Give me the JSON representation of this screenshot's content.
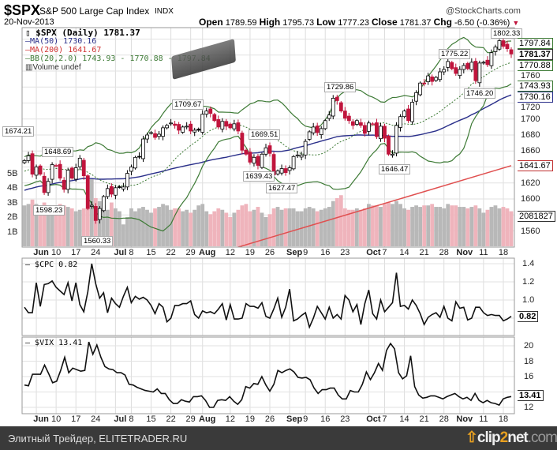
{
  "header": {
    "symbol": "$SPX",
    "name": "S&P 500 Large Cap Index",
    "exchange": "INDX",
    "date": "20-Nov-2013",
    "source": "@StockCharts.com",
    "open_label": "Open",
    "open": "1789.59",
    "high_label": "High",
    "high": "1795.73",
    "low_label": "Low",
    "low": "1777.23",
    "close_label": "Close",
    "close": "1781.37",
    "chg_label": "Chg",
    "chg": "-6.50 (-0.36%)",
    "chg_icon": "triangle-down"
  },
  "legend": {
    "main": "$SPX (Daily) 1781.37",
    "ma50": "MA(50) 1730.16",
    "ma200": "MA(200) 1641.67",
    "bb": "BB(20,2.0) 1743.93 - 1770.88 - 1797.84",
    "volume": "Volume undef"
  },
  "colors": {
    "up": "#000000",
    "down": "#c0143c",
    "ma50": "#2a2f8a",
    "ma200": "#e05050",
    "bb": "#3d7a35",
    "volume_up": "#b8b8b8",
    "volume_down": "#efb4bc"
  },
  "annotations": [
    "1674.21",
    "1648.69",
    "1598.23",
    "1560.33",
    "1709.67",
    "1669.51",
    "1639.43",
    "1627.47",
    "1729.86",
    "1646.47",
    "1775.22",
    "1746.20",
    "1802.33"
  ],
  "right_labels": {
    "bb_upper": "1797.84",
    "close": "1781.37",
    "bb_mid": "1770.88",
    "bb_lower": "1743.93",
    "ma50": "1730.16",
    "ma200": "1641.67",
    "volume": "2081827",
    "cpc": "0.82",
    "vix": "13.41"
  },
  "footer": {
    "text": "Элитный Трейдер, ELITETRADER.RU",
    "logo_a": "clip",
    "logo_b": "2",
    "logo_c": "net",
    "logo_d": ".com"
  },
  "chart_data": [
    {
      "type": "candlestick",
      "title": "$SPX (Daily)",
      "ylim": [
        1550,
        1810
      ],
      "yticks": [
        "1760",
        "1720",
        "1700",
        "1680",
        "1660",
        "1620",
        "1600",
        "1560"
      ],
      "volume_ticks": [
        "5B",
        "4B",
        "3B",
        "2B",
        "1B"
      ],
      "close": [
        1648,
        1654,
        1631,
        1640,
        1631,
        1608,
        1622,
        1643,
        1642,
        1626,
        1612,
        1636,
        1626,
        1639,
        1651,
        1629,
        1588,
        1592,
        1573,
        1588,
        1603,
        1613,
        1606,
        1614,
        1615,
        1615,
        1632,
        1640,
        1652,
        1653,
        1675,
        1680,
        1683,
        1677,
        1681,
        1689,
        1692,
        1695,
        1692,
        1686,
        1690,
        1691,
        1685,
        1686,
        1686,
        1706,
        1710,
        1707,
        1698,
        1690,
        1697,
        1691,
        1689,
        1694,
        1685,
        1661,
        1656,
        1646,
        1652,
        1642,
        1656,
        1664,
        1657,
        1630,
        1635,
        1638,
        1633,
        1639,
        1653,
        1655,
        1655,
        1672,
        1684,
        1690,
        1683,
        1688,
        1698,
        1705,
        1726,
        1723,
        1710,
        1701,
        1698,
        1692,
        1698,
        1692,
        1682,
        1695,
        1694,
        1678,
        1691,
        1676,
        1656,
        1656,
        1692,
        1703,
        1710,
        1698,
        1721,
        1733,
        1745,
        1744,
        1754,
        1747,
        1752,
        1759,
        1762,
        1772,
        1763,
        1757,
        1762,
        1767,
        1763,
        1771,
        1748,
        1770,
        1771,
        1768,
        1783,
        1790,
        1798,
        1791,
        1788,
        1781.37
      ],
      "volume_b": [
        2.8,
        2.9,
        3.2,
        2.9,
        2.8,
        3.0,
        2.7,
        2.6,
        2.5,
        2.9,
        2.8,
        2.7,
        2.6,
        2.4,
        2.5,
        2.6,
        3.3,
        4.6,
        3.3,
        3.1,
        2.8,
        2.5,
        3.0,
        2.6,
        2.4,
        1.5,
        2.0,
        2.6,
        2.4,
        2.6,
        2.7,
        2.5,
        2.3,
        2.6,
        2.7,
        2.9,
        2.8,
        2.5,
        2.6,
        2.6,
        2.4,
        2.5,
        2.3,
        2.5,
        2.8,
        2.9,
        2.4,
        2.2,
        2.4,
        2.6,
        2.5,
        2.3,
        2.0,
        2.3,
        2.5,
        2.8,
        2.9,
        2.4,
        2.5,
        2.7,
        2.3,
        2.0,
        2.2,
        2.6,
        2.7,
        2.5,
        2.6,
        2.6,
        2.6,
        2.4,
        2.4,
        2.6,
        2.7,
        2.6,
        2.4,
        2.5,
        2.6,
        2.7,
        3.1,
        3.3,
        3.5,
        2.6,
        2.5,
        2.5,
        2.6,
        2.5,
        2.6,
        2.9,
        2.8,
        2.8,
        2.7,
        2.9,
        3.0,
        2.9,
        3.1,
        2.9,
        2.6,
        2.5,
        2.7,
        2.8,
        2.7,
        2.8,
        2.8,
        2.9,
        2.7,
        2.7,
        2.6,
        2.9,
        2.8,
        2.8,
        2.7,
        2.7,
        2.6,
        2.7,
        2.8,
        2.6,
        2.3,
        2.5,
        2.7,
        2.8,
        2.6,
        2.7,
        2.6,
        2.4
      ],
      "ma200_range": [
        1460,
        1641.67
      ]
    },
    {
      "type": "line",
      "title": "$CPC",
      "last": "0.82",
      "yticks": [
        "1.4",
        "1.2",
        "1.0"
      ],
      "values": [
        0.92,
        0.86,
        0.86,
        1.19,
        0.93,
        1.17,
        1.18,
        1.21,
        1.14,
        1.1,
        1.06,
        1.19,
        0.99,
        1.19,
        0.95,
        0.87,
        1.09,
        1.4,
        1.18,
        1.02,
        1.08,
        0.86,
        1.02,
        0.96,
        0.92,
        1.04,
        1.14,
        0.97,
        1.04,
        1.01,
        1.03,
        1.0,
        0.94,
        0.85,
        0.96,
        0.92,
        0.76,
        0.8,
        0.94,
        0.94,
        0.96,
        0.96,
        0.99,
        0.84,
        0.8,
        0.88,
        0.86,
        0.87,
        0.85,
        0.9,
        0.96,
        0.78,
        0.95,
        0.79,
        0.79,
        0.8,
        0.96,
        0.93,
        0.93,
        0.91,
        0.97,
        0.82,
        0.8,
        0.9,
        1.02,
        0.81,
        0.92,
        1.12,
        0.77,
        0.79,
        0.83,
        0.86,
        0.7,
        0.8,
        0.93,
        0.86,
        0.79,
        0.92,
        0.8,
        0.84,
        0.79,
        1.05,
        1.0,
        0.87,
        0.95,
        0.73,
        0.96,
        1.11,
        0.85,
        0.79,
        1.0,
        0.87,
        0.92,
        0.97,
        1.3,
        0.93,
        0.94,
        0.9,
        1.0,
        0.94,
        0.85,
        0.73,
        0.81,
        0.84,
        0.86,
        0.81,
        0.93,
        0.8,
        0.77,
        0.98,
        0.91,
        0.92,
        0.78,
        0.8,
        0.92,
        0.92,
        0.86,
        0.83,
        0.84,
        0.83,
        0.83,
        0.77,
        0.79,
        0.82
      ]
    },
    {
      "type": "line",
      "title": "$VIX",
      "last": "13.41",
      "yticks": [
        "20",
        "18",
        "16",
        "12"
      ],
      "values": [
        14.9,
        14.8,
        16.3,
        16.3,
        16.3,
        17.5,
        16.4,
        15.2,
        15.4,
        16.8,
        18.5,
        16.5,
        17.1,
        16.9,
        16.7,
        16.8,
        20.5,
        18.9,
        20.1,
        18.5,
        17.3,
        17.0,
        16.9,
        16.5,
        16.5,
        16.2,
        15.0,
        14.9,
        14.6,
        14.4,
        14.2,
        14.1,
        14.0,
        14.4,
        13.8,
        13.8,
        13.0,
        12.5,
        12.5,
        13.0,
        12.8,
        12.7,
        13.4,
        13.4,
        13.5,
        12.9,
        12.0,
        12.0,
        12.9,
        13.0,
        12.9,
        13.4,
        12.8,
        12.4,
        13.0,
        14.7,
        14.5,
        15.1,
        15.0,
        16.0,
        14.9,
        14.1,
        15.0,
        16.8,
        16.5,
        16.8,
        17.0,
        16.6,
        15.9,
        15.8,
        15.9,
        15.6,
        14.5,
        13.8,
        14.3,
        14.3,
        14.5,
        14.5,
        13.6,
        13.1,
        13.1,
        14.2,
        14.0,
        14.0,
        15.0,
        16.6,
        15.6,
        16.5,
        17.7,
        16.8,
        19.4,
        20.3,
        19.6,
        16.5,
        15.7,
        16.1,
        18.7,
        14.7,
        13.6,
        13.2,
        13.3,
        13.5,
        13.5,
        13.3,
        13.1,
        13.4,
        13.6,
        13.8,
        13.4,
        13.1,
        13.3,
        12.9,
        13.8,
        12.9,
        12.6,
        12.9,
        12.6,
        12.5,
        12.3,
        13.1,
        13.3,
        13.41
      ]
    }
  ],
  "date_ticks": [
    {
      "label": "Jun",
      "idx": 3,
      "m": 1
    },
    {
      "label": "10",
      "idx": 8
    },
    {
      "label": "17",
      "idx": 13
    },
    {
      "label": "24",
      "idx": 18
    },
    {
      "label": "Jul",
      "idx": 23,
      "m": 1
    },
    {
      "label": "8",
      "idx": 27
    },
    {
      "label": "15",
      "idx": 32
    },
    {
      "label": "22",
      "idx": 37
    },
    {
      "label": "29",
      "idx": 42
    },
    {
      "label": "Aug",
      "idx": 45,
      "m": 1
    },
    {
      "label": "12",
      "idx": 52
    },
    {
      "label": "19",
      "idx": 57
    },
    {
      "label": "26",
      "idx": 62
    },
    {
      "label": "Sep",
      "idx": 67,
      "m": 1
    },
    {
      "label": "9",
      "idx": 71
    },
    {
      "label": "16",
      "idx": 76
    },
    {
      "label": "23",
      "idx": 81
    },
    {
      "label": "Oct",
      "idx": 87,
      "m": 1
    },
    {
      "label": "7",
      "idx": 91
    },
    {
      "label": "14",
      "idx": 96
    },
    {
      "label": "21",
      "idx": 101
    },
    {
      "label": "28",
      "idx": 106
    },
    {
      "label": "Nov",
      "idx": 110,
      "m": 1
    },
    {
      "label": "11",
      "idx": 116
    },
    {
      "label": "18",
      "idx": 121
    }
  ]
}
